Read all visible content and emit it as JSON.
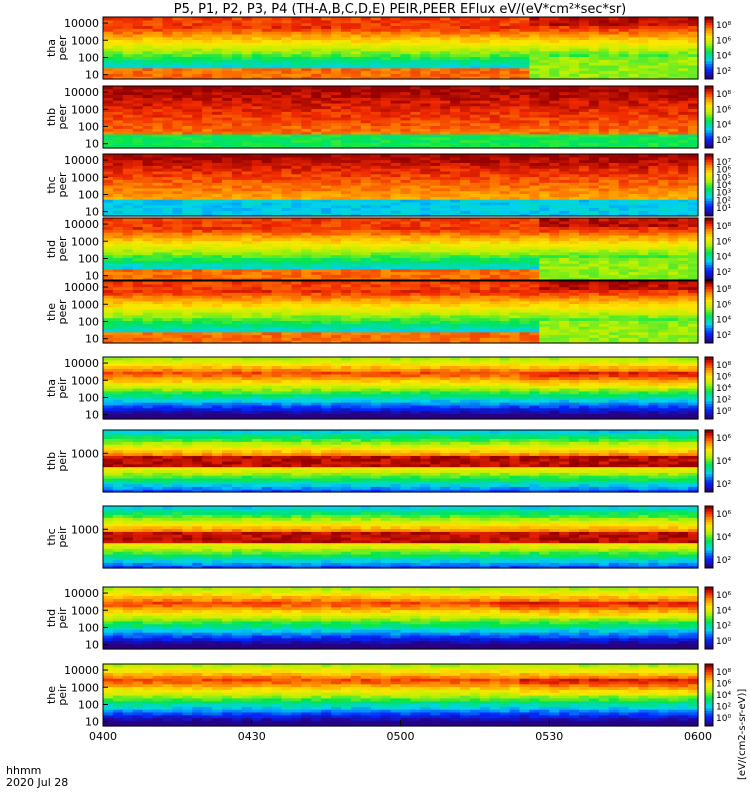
{
  "chart_data": {
    "type": "heatmap",
    "title": "P5, P1, P2, P3, P4 (TH-A,B,C,D,E) PEIR,PEER EFlux eV/(eV*cm²*sec*sr)",
    "x_ticks": [
      "0400",
      "0430",
      "0500",
      "0530",
      "0600"
    ],
    "x_range_minutes": [
      0,
      120
    ],
    "footer_line1": "hhmm",
    "footer_line2": "2020 Jul 28",
    "colorbar_units": "[eV/(cm2-s-sr-eV)]",
    "panels": [
      {
        "probe": "tha",
        "instrument": "peer",
        "y_scale": "log",
        "y_ticks": [
          "10",
          "100",
          "1000",
          "10000"
        ],
        "colorbar_ticks": [
          "10⁸",
          "10⁶",
          "10⁴",
          "10²"
        ],
        "change_minute": 86,
        "band_low": 6.5,
        "band_high": 7.0,
        "band_low_after": 5.0,
        "band_high_after": 6.5
      },
      {
        "probe": "thb",
        "instrument": "peer",
        "y_scale": "log",
        "y_ticks": [
          "10",
          "100",
          "1000",
          "10000"
        ],
        "colorbar_ticks": [
          "10⁸",
          "10⁶",
          "10⁴",
          "10²"
        ],
        "change_minute": null,
        "band_low": 7.5,
        "band_high": 8.0
      },
      {
        "probe": "thc",
        "instrument": "peer",
        "y_scale": "log",
        "y_ticks": [
          "10",
          "100",
          "1000",
          "10000"
        ],
        "colorbar_ticks": [
          "10⁷",
          "10⁶",
          "10⁵",
          "10⁴",
          "10³",
          "10²",
          "10¹"
        ],
        "change_minute": null,
        "band_low": 8.0,
        "band_high": 8.5
      },
      {
        "probe": "thd",
        "instrument": "peer",
        "y_scale": "log",
        "y_ticks": [
          "10",
          "100",
          "1000",
          "10000"
        ],
        "colorbar_ticks": [
          "10⁸",
          "10⁶",
          "10⁴",
          "10²"
        ],
        "change_minute": 88,
        "band_low": 6.5,
        "band_high": 7.0,
        "band_low_after": 5.5,
        "band_high_after": 6.5
      },
      {
        "probe": "the",
        "instrument": "peer",
        "y_scale": "log",
        "y_ticks": [
          "10",
          "100",
          "1000",
          "10000"
        ],
        "colorbar_ticks": [
          "10⁸",
          "10⁶",
          "10⁴",
          "10²"
        ],
        "change_minute": 88,
        "band_low": 6.5,
        "band_high": 7.0,
        "band_low_after": 5.5,
        "band_high_after": 6.5
      },
      {
        "probe": "tha",
        "instrument": "peir",
        "y_scale": "log",
        "y_ticks": [
          "10",
          "100",
          "1000",
          "10000"
        ],
        "colorbar_ticks": [
          "10⁸",
          "10⁶",
          "10⁴",
          "10²",
          "10⁰"
        ],
        "change_minute": 84,
        "band_low": 5.0,
        "band_high": 6.0
      },
      {
        "probe": "thb",
        "instrument": "peir",
        "y_scale": "log",
        "y_ticks": [
          "1000"
        ],
        "colorbar_ticks": [
          "10⁶",
          "10⁴",
          "10²"
        ],
        "change_minute": null,
        "band_low": 6.5,
        "band_high": 7.0
      },
      {
        "probe": "thc",
        "instrument": "peir",
        "y_scale": "log",
        "y_ticks": [
          "1000"
        ],
        "colorbar_ticks": [
          "10⁶",
          "10⁴",
          "10²"
        ],
        "change_minute": null,
        "band_low": 6.5,
        "band_high": 7.0
      },
      {
        "probe": "thd",
        "instrument": "peir",
        "y_scale": "log",
        "y_ticks": [
          "10",
          "100",
          "1000",
          "10000"
        ],
        "colorbar_ticks": [
          "10⁶",
          "10⁴",
          "10²",
          "10⁰"
        ],
        "change_minute": 80,
        "band_low": 5.0,
        "band_high": 6.0
      },
      {
        "probe": "the",
        "instrument": "peir",
        "y_scale": "log",
        "y_ticks": [
          "10",
          "100",
          "1000",
          "10000"
        ],
        "colorbar_ticks": [
          "10⁸",
          "10⁶",
          "10⁴",
          "10²",
          "10⁰"
        ],
        "change_minute": 84,
        "band_low": 5.0,
        "band_high": 6.0
      }
    ]
  }
}
